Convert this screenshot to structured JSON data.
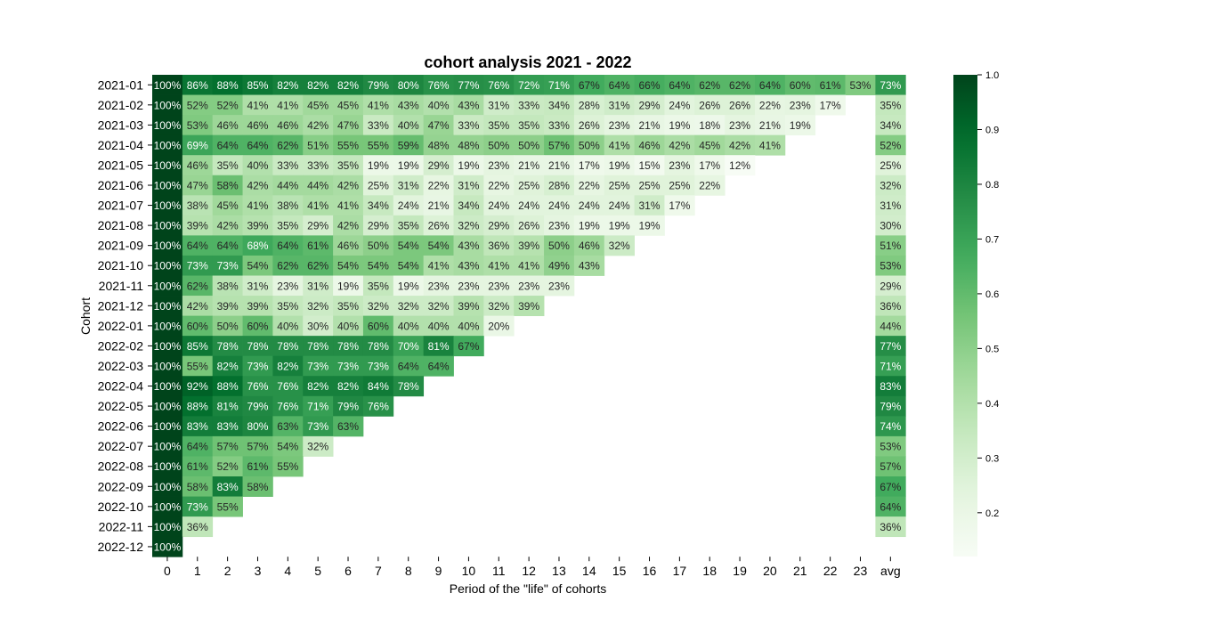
{
  "chart_data": {
    "type": "heatmap",
    "title": "cohort analysis 2021 - 2022",
    "xlabel": "Period of the \"life\" of cohorts",
    "ylabel": "Cohort",
    "x_categories": [
      "0",
      "1",
      "2",
      "3",
      "4",
      "5",
      "6",
      "7",
      "8",
      "9",
      "10",
      "11",
      "12",
      "13",
      "14",
      "15",
      "16",
      "17",
      "18",
      "19",
      "20",
      "21",
      "22",
      "23",
      "avg"
    ],
    "y_categories": [
      "2021-01",
      "2021-02",
      "2021-03",
      "2021-04",
      "2021-05",
      "2021-06",
      "2021-07",
      "2021-08",
      "2021-09",
      "2021-10",
      "2021-11",
      "2021-12",
      "2022-01",
      "2022-02",
      "2022-03",
      "2022-04",
      "2022-05",
      "2022-06",
      "2022-07",
      "2022-08",
      "2022-09",
      "2022-10",
      "2022-11",
      "2022-12"
    ],
    "values": [
      [
        100,
        86,
        88,
        85,
        82,
        82,
        82,
        79,
        80,
        76,
        77,
        76,
        72,
        71,
        67,
        64,
        66,
        64,
        62,
        62,
        64,
        60,
        61,
        53,
        73
      ],
      [
        100,
        52,
        52,
        41,
        41,
        45,
        45,
        41,
        43,
        40,
        43,
        31,
        33,
        34,
        28,
        31,
        29,
        24,
        26,
        26,
        22,
        23,
        17,
        null,
        35
      ],
      [
        100,
        53,
        46,
        46,
        46,
        42,
        47,
        33,
        40,
        47,
        33,
        35,
        35,
        33,
        26,
        23,
        21,
        19,
        18,
        23,
        21,
        19,
        null,
        null,
        34
      ],
      [
        100,
        69,
        64,
        64,
        62,
        51,
        55,
        55,
        59,
        48,
        48,
        50,
        50,
        57,
        50,
        41,
        46,
        42,
        45,
        42,
        41,
        null,
        null,
        null,
        52
      ],
      [
        100,
        46,
        35,
        40,
        33,
        33,
        35,
        19,
        19,
        29,
        19,
        23,
        21,
        21,
        17,
        19,
        15,
        23,
        17,
        12,
        null,
        null,
        null,
        null,
        25
      ],
      [
        100,
        47,
        58,
        42,
        44,
        44,
        42,
        25,
        31,
        22,
        31,
        22,
        25,
        28,
        22,
        25,
        25,
        25,
        22,
        null,
        null,
        null,
        null,
        null,
        32
      ],
      [
        100,
        38,
        45,
        41,
        38,
        41,
        41,
        34,
        24,
        21,
        34,
        24,
        24,
        24,
        24,
        24,
        31,
        17,
        null,
        null,
        null,
        null,
        null,
        null,
        31
      ],
      [
        100,
        39,
        42,
        39,
        35,
        29,
        42,
        29,
        35,
        26,
        32,
        29,
        26,
        23,
        19,
        19,
        19,
        null,
        null,
        null,
        null,
        null,
        null,
        null,
        30
      ],
      [
        100,
        64,
        64,
        68,
        64,
        61,
        46,
        50,
        54,
        54,
        43,
        36,
        39,
        50,
        46,
        32,
        null,
        null,
        null,
        null,
        null,
        null,
        null,
        null,
        51
      ],
      [
        100,
        73,
        73,
        54,
        62,
        62,
        54,
        54,
        54,
        41,
        43,
        41,
        41,
        49,
        43,
        null,
        null,
        null,
        null,
        null,
        null,
        null,
        null,
        null,
        53
      ],
      [
        100,
        62,
        38,
        31,
        23,
        31,
        19,
        35,
        19,
        23,
        23,
        23,
        23,
        23,
        null,
        null,
        null,
        null,
        null,
        null,
        null,
        null,
        null,
        null,
        29
      ],
      [
        100,
        42,
        39,
        39,
        35,
        32,
        35,
        32,
        32,
        32,
        39,
        32,
        39,
        null,
        null,
        null,
        null,
        null,
        null,
        null,
        null,
        null,
        null,
        null,
        36
      ],
      [
        100,
        60,
        50,
        60,
        40,
        30,
        40,
        60,
        40,
        40,
        40,
        20,
        null,
        null,
        null,
        null,
        null,
        null,
        null,
        null,
        null,
        null,
        null,
        null,
        44
      ],
      [
        100,
        85,
        78,
        78,
        78,
        78,
        78,
        78,
        70,
        81,
        67,
        null,
        null,
        null,
        null,
        null,
        null,
        null,
        null,
        null,
        null,
        null,
        null,
        null,
        77
      ],
      [
        100,
        55,
        82,
        73,
        82,
        73,
        73,
        73,
        64,
        64,
        null,
        null,
        null,
        null,
        null,
        null,
        null,
        null,
        null,
        null,
        null,
        null,
        null,
        null,
        71
      ],
      [
        100,
        92,
        88,
        76,
        76,
        82,
        82,
        84,
        78,
        null,
        null,
        null,
        null,
        null,
        null,
        null,
        null,
        null,
        null,
        null,
        null,
        null,
        null,
        null,
        83
      ],
      [
        100,
        88,
        81,
        79,
        76,
        71,
        79,
        76,
        null,
        null,
        null,
        null,
        null,
        null,
        null,
        null,
        null,
        null,
        null,
        null,
        null,
        null,
        null,
        null,
        79
      ],
      [
        100,
        83,
        83,
        80,
        63,
        73,
        63,
        null,
        null,
        null,
        null,
        null,
        null,
        null,
        null,
        null,
        null,
        null,
        null,
        null,
        null,
        null,
        null,
        null,
        74
      ],
      [
        100,
        64,
        57,
        57,
        54,
        32,
        null,
        null,
        null,
        null,
        null,
        null,
        null,
        null,
        null,
        null,
        null,
        null,
        null,
        null,
        null,
        null,
        null,
        null,
        53
      ],
      [
        100,
        61,
        52,
        61,
        55,
        null,
        null,
        null,
        null,
        null,
        null,
        null,
        null,
        null,
        null,
        null,
        null,
        null,
        null,
        null,
        null,
        null,
        null,
        null,
        57
      ],
      [
        100,
        58,
        83,
        58,
        null,
        null,
        null,
        null,
        null,
        null,
        null,
        null,
        null,
        null,
        null,
        null,
        null,
        null,
        null,
        null,
        null,
        null,
        null,
        null,
        67
      ],
      [
        100,
        73,
        55,
        null,
        null,
        null,
        null,
        null,
        null,
        null,
        null,
        null,
        null,
        null,
        null,
        null,
        null,
        null,
        null,
        null,
        null,
        null,
        null,
        null,
        64
      ],
      [
        100,
        36,
        null,
        null,
        null,
        null,
        null,
        null,
        null,
        null,
        null,
        null,
        null,
        null,
        null,
        null,
        null,
        null,
        null,
        null,
        null,
        null,
        null,
        null,
        36
      ],
      [
        100,
        null,
        null,
        null,
        null,
        null,
        null,
        null,
        null,
        null,
        null,
        null,
        null,
        null,
        null,
        null,
        null,
        null,
        null,
        null,
        null,
        null,
        null,
        null,
        null
      ]
    ],
    "value_format": "percent",
    "colormap": "Greens",
    "color_range": [
      0.12,
      1.0
    ],
    "colorbar": {
      "ticks": [
        "0.2",
        "0.3",
        "0.4",
        "0.5",
        "0.6",
        "0.7",
        "0.8",
        "0.9",
        "1.0"
      ],
      "position": "right"
    }
  }
}
